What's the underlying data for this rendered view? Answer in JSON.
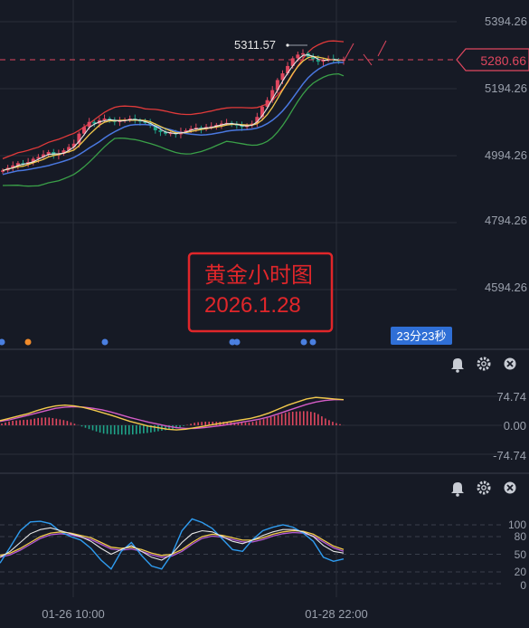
{
  "colors": {
    "background": "#161a25",
    "grid": "#2a2e39",
    "up": "#e0475f",
    "down": "#1fa58a",
    "ma_yellow": "#f2c94c",
    "ma_white": "#e6e6e6",
    "ma_blue": "#4a78e0",
    "boll_red": "#e03a3a",
    "boll_green": "#3aa048",
    "macd_dif": "#f2c94c",
    "macd_dea": "#d45cc6",
    "kdj_k": "#e6e6e6",
    "kdj_d": "#f2c94c",
    "kdj_j": "#2f9cf0",
    "kdj_violet": "#b45ad6",
    "price_tag": "#e0475f",
    "timer_bg": "#2f6fd6",
    "annotation_red": "#e0262a"
  },
  "main_panel": {
    "price_labels": [
      "5394.26",
      "5194.26",
      "4994.26",
      "4794.26",
      "4594.26"
    ],
    "current_price": "5280.66",
    "high_marker": "5311.57",
    "timer": "23分23秒",
    "annotation": {
      "title": "黄金小时图",
      "date": "2026.1.28"
    }
  },
  "macd_panel": {
    "levels": [
      "74.74",
      "0.00",
      "-74.74"
    ]
  },
  "kdj_panel": {
    "levels": [
      "100",
      "80",
      "50",
      "20",
      "0"
    ]
  },
  "panel_icons": [
    "bell-icon",
    "gear-icon",
    "close-icon"
  ],
  "time_axis": {
    "labels": [
      "01-26 10:00",
      "01-28 22:00"
    ]
  },
  "chart_data": [
    {
      "type": "line",
      "title": "",
      "description_of_series": "gold hourly candlestick with moving averages and Bollinger bands",
      "y_ticks": [
        5394.26,
        5194.26,
        4994.26,
        4794.26,
        4594.26
      ],
      "current_price": 5280.66,
      "marked_high": 5311.57,
      "close_approx": [
        4950,
        4958,
        4965,
        4972,
        4968,
        4975,
        4985,
        4990,
        4998,
        5005,
        4995,
        5000,
        5010,
        5020,
        5030,
        5060,
        5080,
        5095,
        5090,
        5100,
        5105,
        5100,
        5095,
        5098,
        5102,
        5105,
        5100,
        5096,
        5092,
        5085,
        5070,
        5065,
        5060,
        5062,
        5058,
        5066,
        5070,
        5075,
        5078,
        5073,
        5080,
        5082,
        5086,
        5090,
        5092,
        5088,
        5084,
        5080,
        5085,
        5090,
        5110,
        5140,
        5160,
        5190,
        5220,
        5240,
        5262,
        5285,
        5296,
        5300,
        5290,
        5282,
        5275,
        5280,
        5284,
        5280,
        5278,
        5281
      ]
    },
    {
      "type": "line",
      "title": "",
      "levels": [
        74.74,
        0.0,
        -74.74
      ],
      "series": [
        {
          "name": "",
          "values": [
            12,
            18,
            24,
            30,
            38,
            45,
            50,
            52,
            50,
            46,
            40,
            33,
            26,
            18,
            10,
            4,
            -2,
            -6,
            -10,
            -12,
            -10,
            -6,
            -2,
            2,
            6,
            10,
            14,
            18,
            24,
            32,
            42,
            52,
            60,
            68,
            72,
            70,
            68,
            66
          ]
        },
        {
          "name": "",
          "values": [
            10,
            14,
            20,
            26,
            32,
            38,
            44,
            47,
            48,
            47,
            44,
            40,
            34,
            27,
            20,
            14,
            8,
            3,
            -2,
            -6,
            -8,
            -8,
            -6,
            -3,
            0,
            4,
            8,
            12,
            16,
            22,
            30,
            38,
            46,
            54,
            60,
            64,
            66,
            66
          ]
        }
      ]
    },
    {
      "type": "line",
      "title": "",
      "levels": [
        100,
        80,
        50,
        20,
        0
      ],
      "series": [
        {
          "name": "",
          "values": [
            45,
            55,
            70,
            85,
            92,
            95,
            90,
            85,
            80,
            72,
            60,
            50,
            58,
            65,
            55,
            45,
            40,
            50,
            70,
            85,
            90,
            88,
            80,
            72,
            68,
            74,
            82,
            88,
            92,
            92,
            88,
            80,
            65,
            55,
            52
          ]
        },
        {
          "name": "",
          "values": [
            48,
            52,
            60,
            70,
            80,
            86,
            88,
            86,
            82,
            78,
            70,
            62,
            60,
            62,
            58,
            52,
            48,
            50,
            58,
            70,
            80,
            84,
            82,
            78,
            74,
            74,
            78,
            84,
            88,
            90,
            89,
            84,
            74,
            64,
            58
          ]
        },
        {
          "name": "",
          "values": [
            35,
            62,
            90,
            105,
            106,
            102,
            88,
            80,
            74,
            60,
            40,
            25,
            55,
            70,
            48,
            30,
            25,
            50,
            90,
            110,
            104,
            94,
            76,
            58,
            55,
            75,
            90,
            96,
            100,
            96,
            86,
            72,
            45,
            38,
            42
          ]
        }
      ]
    }
  ]
}
